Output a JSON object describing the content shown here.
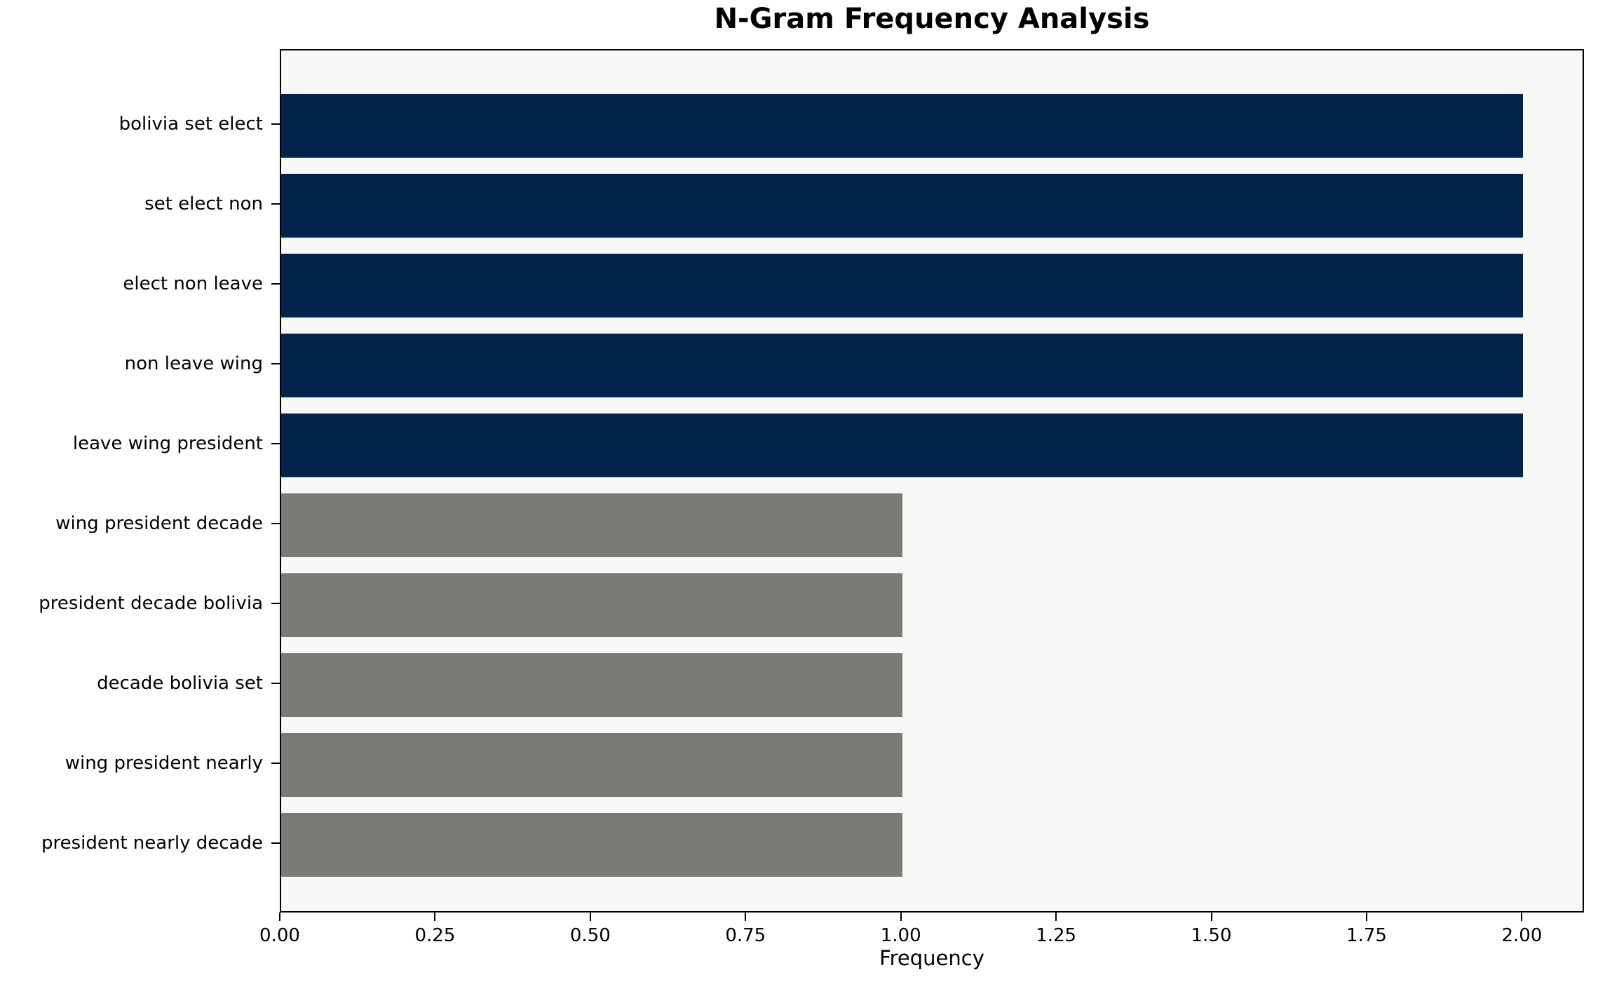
{
  "chart_data": {
    "type": "bar",
    "orientation": "horizontal",
    "title": "N-Gram Frequency Analysis",
    "xlabel": "Frequency",
    "ylabel": "",
    "categories": [
      "bolivia set elect",
      "set elect non",
      "elect non leave",
      "non leave wing",
      "leave wing president",
      "wing president decade",
      "president decade bolivia",
      "decade bolivia set",
      "wing president nearly",
      "president nearly decade"
    ],
    "values": [
      2,
      2,
      2,
      2,
      2,
      1,
      1,
      1,
      1,
      1
    ],
    "bar_colors": [
      "#02234c",
      "#02234c",
      "#02234c",
      "#02234c",
      "#02234c",
      "#7a7a77",
      "#7a7a77",
      "#7a7a77",
      "#7a7a77",
      "#7a7a77"
    ],
    "xlim": [
      0,
      2.1
    ],
    "xticks": [
      0,
      0.25,
      0.5,
      0.75,
      1.0,
      1.25,
      1.5,
      1.75,
      2.0
    ],
    "xtick_labels": [
      "0.00",
      "0.25",
      "0.50",
      "0.75",
      "1.00",
      "1.25",
      "1.50",
      "1.75",
      "2.00"
    ],
    "grid": false,
    "legend": "none",
    "plot_background": "#f7f7f5",
    "spine_color": "#000000",
    "tick_color": "#000000"
  }
}
